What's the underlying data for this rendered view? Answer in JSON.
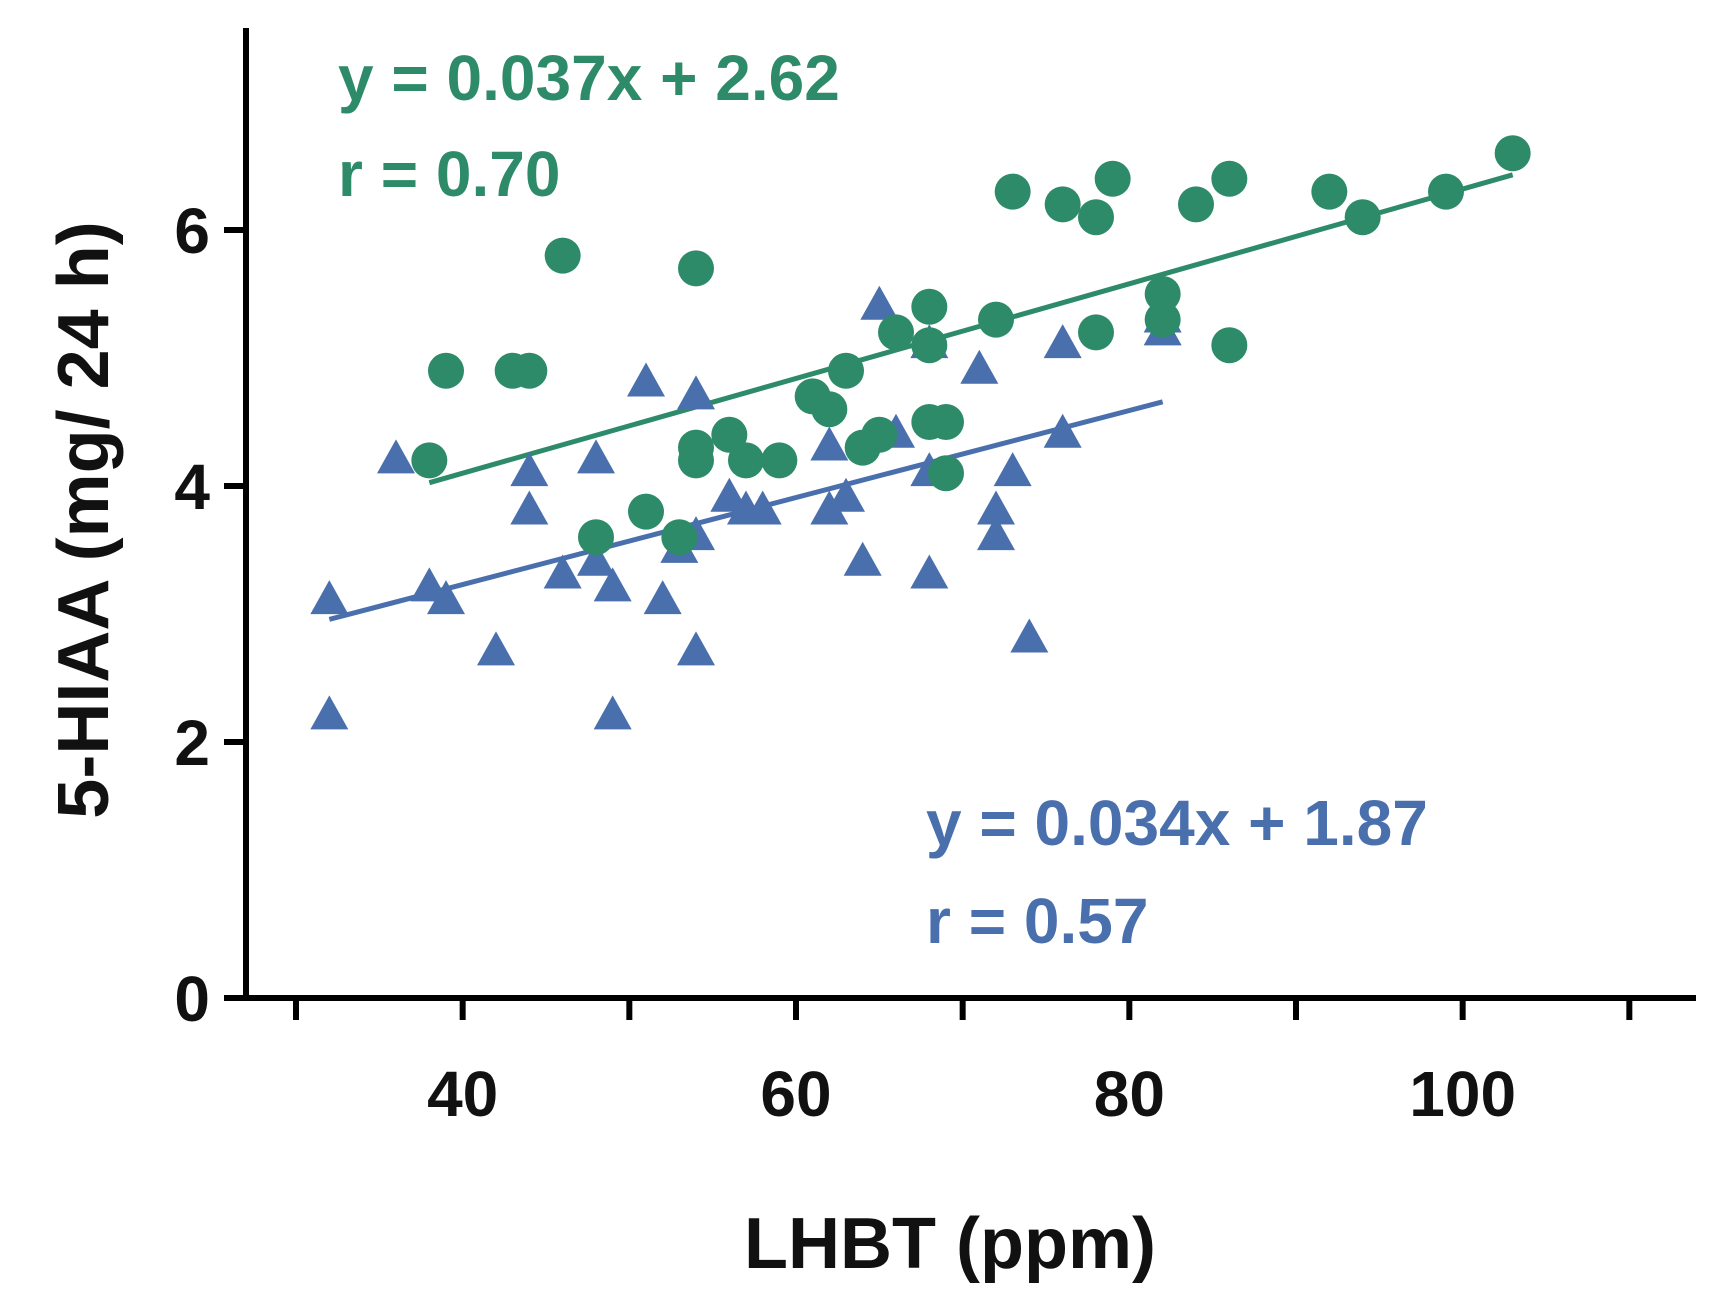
{
  "chart_data": {
    "type": "scatter",
    "title": "",
    "xlabel": "LHBT (ppm)",
    "ylabel": "5-HIAA (mg/ 24 h)",
    "xlim": [
      27,
      114
    ],
    "ylim": [
      0,
      7.5
    ],
    "xticks_major": [
      40,
      60,
      80,
      100
    ],
    "xticks_minor": [
      30,
      50,
      70,
      90,
      110
    ],
    "yticks": [
      0,
      2,
      4,
      6
    ],
    "grid": false,
    "series": [
      {
        "name": "green",
        "color": "#2e8b6a",
        "marker": "circle",
        "equation": "y = 0.037x + 2.62",
        "r_label": "r = 0.70",
        "slope": 0.037,
        "intercept": 2.62,
        "fit_x_range": [
          38,
          103
        ],
        "points": [
          [
            38,
            4.2
          ],
          [
            39,
            4.9
          ],
          [
            43,
            4.9
          ],
          [
            44,
            4.9
          ],
          [
            46,
            5.8
          ],
          [
            48,
            3.6
          ],
          [
            51,
            3.8
          ],
          [
            53,
            3.6
          ],
          [
            54,
            4.3
          ],
          [
            54,
            4.2
          ],
          [
            54,
            5.7
          ],
          [
            56,
            4.4
          ],
          [
            57,
            4.2
          ],
          [
            59,
            4.2
          ],
          [
            61,
            4.7
          ],
          [
            62,
            4.6
          ],
          [
            63,
            4.9
          ],
          [
            64,
            4.3
          ],
          [
            65,
            4.4
          ],
          [
            66,
            5.2
          ],
          [
            68,
            5.4
          ],
          [
            68,
            5.1
          ],
          [
            68,
            4.5
          ],
          [
            69,
            4.5
          ],
          [
            69,
            4.1
          ],
          [
            72,
            5.3
          ],
          [
            73,
            6.3
          ],
          [
            76,
            6.2
          ],
          [
            78,
            6.1
          ],
          [
            78,
            5.2
          ],
          [
            79,
            6.4
          ],
          [
            82,
            5.5
          ],
          [
            82,
            5.3
          ],
          [
            84,
            6.2
          ],
          [
            86,
            6.4
          ],
          [
            86,
            5.1
          ],
          [
            92,
            6.3
          ],
          [
            94,
            6.1
          ],
          [
            99,
            6.3
          ],
          [
            103,
            6.6
          ]
        ]
      },
      {
        "name": "blue",
        "color": "#4a6fad",
        "marker": "triangle",
        "equation": "y = 0.034x + 1.87",
        "r_label": "r = 0.57",
        "slope": 0.034,
        "intercept": 1.87,
        "fit_x_range": [
          32,
          82
        ],
        "points": [
          [
            32,
            3.1
          ],
          [
            32,
            2.2
          ],
          [
            36,
            4.2
          ],
          [
            38,
            3.2
          ],
          [
            39,
            3.1
          ],
          [
            42,
            2.7
          ],
          [
            44,
            4.1
          ],
          [
            44,
            3.8
          ],
          [
            46,
            3.3
          ],
          [
            48,
            4.2
          ],
          [
            48,
            3.4
          ],
          [
            49,
            3.2
          ],
          [
            49,
            2.2
          ],
          [
            51,
            4.8
          ],
          [
            52,
            3.1
          ],
          [
            53,
            3.5
          ],
          [
            54,
            4.7
          ],
          [
            54,
            3.6
          ],
          [
            54,
            2.7
          ],
          [
            56,
            3.9
          ],
          [
            57,
            3.8
          ],
          [
            58,
            3.8
          ],
          [
            62,
            4.3
          ],
          [
            62,
            3.8
          ],
          [
            63,
            3.9
          ],
          [
            64,
            3.4
          ],
          [
            65,
            5.4
          ],
          [
            66,
            4.4
          ],
          [
            68,
            5.1
          ],
          [
            68,
            4.1
          ],
          [
            68,
            3.3
          ],
          [
            71,
            4.9
          ],
          [
            72,
            3.8
          ],
          [
            72,
            3.6
          ],
          [
            73,
            4.1
          ],
          [
            74,
            2.8
          ],
          [
            76,
            5.1
          ],
          [
            76,
            4.4
          ],
          [
            82,
            5.3
          ],
          [
            82,
            5.2
          ]
        ]
      }
    ]
  }
}
